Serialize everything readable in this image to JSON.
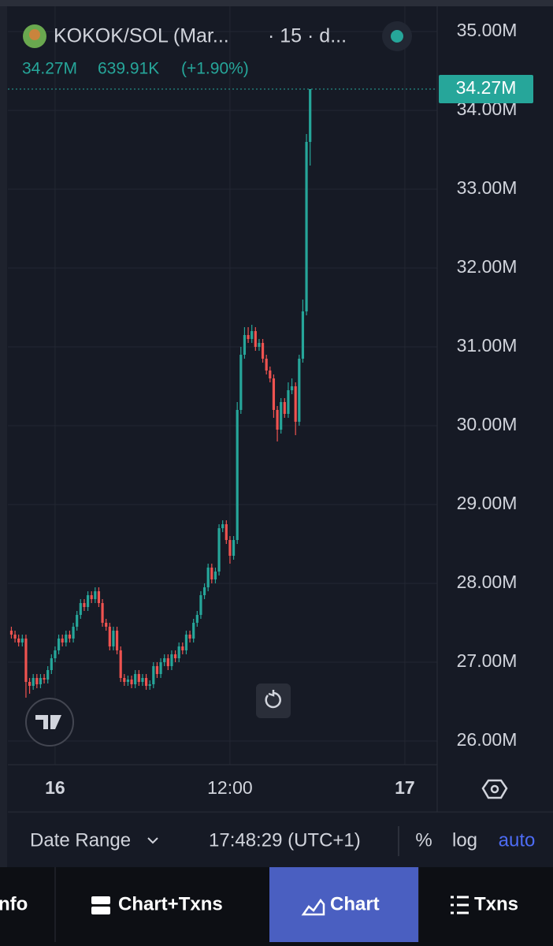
{
  "header": {
    "name": "KOKOK/SOL (Mar...",
    "interval": "· 15 · d...",
    "close": "34.27M",
    "change": "639.91K",
    "change_pct": "(+1.90%)"
  },
  "chart_data": {
    "type": "candlestick",
    "up_color": "#26a69a",
    "down_color": "#ef5350",
    "grid": true,
    "x": [
      -3,
      -2.75,
      -2.5,
      -2.25,
      -2,
      -1.75,
      -1.5,
      -1.25,
      -1,
      -0.75,
      -0.5,
      -0.25,
      0,
      0.25,
      0.5,
      0.75,
      1,
      1.25,
      1.5,
      1.75,
      2,
      2.25,
      2.5,
      2.75,
      3,
      3.25,
      3.5,
      3.75,
      4,
      4.25,
      4.5,
      4.75,
      5,
      5.25,
      5.5,
      5.75,
      6,
      6.25,
      6.5,
      6.75,
      7,
      7.25,
      7.5,
      7.75,
      8,
      8.25,
      8.5,
      8.75,
      9,
      9.25,
      9.5,
      9.75,
      10,
      10.25,
      10.5,
      10.75,
      11,
      11.25,
      11.5,
      11.75,
      12,
      12.25,
      12.5,
      12.75,
      13,
      13.25,
      13.5,
      13.75,
      14,
      14.25,
      14.5,
      14.75,
      15,
      15.25,
      15.5,
      15.75,
      16,
      16.25,
      16.5,
      16.75,
      17,
      17.25,
      17.5
    ],
    "open": [
      27.4,
      27.35,
      27.3,
      27.25,
      27.3,
      26.75,
      26.7,
      26.8,
      26.72,
      26.8,
      26.78,
      26.9,
      27.05,
      27.15,
      27.3,
      27.25,
      27.35,
      27.3,
      27.45,
      27.6,
      27.75,
      27.7,
      27.85,
      27.8,
      27.9,
      27.75,
      27.5,
      27.45,
      27.2,
      27.4,
      27.15,
      26.8,
      26.75,
      26.78,
      26.72,
      26.85,
      26.75,
      26.8,
      26.7,
      26.72,
      26.95,
      26.85,
      27.0,
      27.05,
      26.95,
      27.1,
      27.05,
      27.2,
      27.15,
      27.35,
      27.3,
      27.5,
      27.6,
      27.85,
      27.95,
      28.2,
      28.05,
      28.15,
      28.7,
      28.75,
      28.55,
      28.35,
      28.55,
      30.2,
      30.9,
      31.15,
      31.1,
      31.2,
      31.0,
      31.05,
      30.85,
      30.7,
      30.6,
      30.2,
      29.95,
      30.3,
      30.15,
      30.45,
      30.5,
      30.05,
      30.85,
      31.45,
      33.6
    ],
    "high": [
      27.45,
      27.4,
      27.35,
      27.35,
      27.35,
      26.8,
      26.85,
      26.85,
      26.85,
      26.85,
      26.95,
      27.1,
      27.2,
      27.35,
      27.35,
      27.4,
      27.4,
      27.5,
      27.65,
      27.8,
      27.8,
      27.9,
      27.9,
      27.95,
      27.95,
      27.8,
      27.55,
      27.5,
      27.45,
      27.45,
      27.2,
      26.85,
      26.83,
      26.83,
      26.9,
      26.9,
      26.85,
      26.85,
      26.77,
      27.0,
      27.0,
      27.05,
      27.1,
      27.1,
      27.15,
      27.15,
      27.25,
      27.25,
      27.4,
      27.4,
      27.55,
      27.65,
      27.9,
      28.0,
      28.25,
      28.25,
      28.2,
      28.75,
      28.8,
      28.8,
      28.6,
      28.6,
      30.3,
      31.0,
      31.25,
      31.25,
      31.28,
      31.25,
      31.1,
      31.1,
      30.9,
      30.75,
      30.65,
      30.25,
      30.35,
      30.35,
      30.55,
      30.6,
      30.55,
      30.9,
      31.6,
      33.7,
      34.27
    ],
    "low": [
      27.3,
      27.25,
      27.2,
      27.2,
      26.55,
      26.6,
      26.65,
      26.67,
      26.67,
      26.73,
      26.73,
      26.85,
      27.0,
      27.1,
      27.2,
      27.2,
      27.25,
      27.25,
      27.4,
      27.55,
      27.65,
      27.65,
      27.75,
      27.75,
      27.7,
      27.45,
      27.4,
      27.15,
      27.15,
      27.1,
      26.75,
      26.7,
      26.7,
      26.67,
      26.67,
      26.7,
      26.7,
      26.65,
      26.65,
      26.67,
      26.8,
      26.8,
      26.95,
      26.9,
      26.9,
      27.0,
      27.0,
      27.1,
      27.1,
      27.25,
      27.25,
      27.45,
      27.55,
      27.8,
      27.9,
      28.0,
      28.0,
      28.1,
      28.65,
      28.5,
      28.25,
      28.3,
      28.5,
      30.15,
      30.85,
      31.05,
      31.05,
      30.95,
      30.95,
      30.8,
      30.65,
      30.55,
      30.1,
      29.8,
      29.9,
      30.1,
      30.1,
      30.4,
      29.88,
      30.0,
      30.8,
      31.4,
      33.3
    ],
    "close": [
      27.35,
      27.3,
      27.25,
      27.3,
      26.75,
      26.7,
      26.8,
      26.72,
      26.8,
      26.78,
      26.9,
      27.05,
      27.15,
      27.3,
      27.25,
      27.35,
      27.3,
      27.45,
      27.6,
      27.75,
      27.7,
      27.85,
      27.8,
      27.9,
      27.75,
      27.5,
      27.45,
      27.2,
      27.4,
      27.15,
      26.8,
      26.75,
      26.78,
      26.72,
      26.85,
      26.75,
      26.8,
      26.7,
      26.72,
      26.95,
      26.85,
      27.0,
      27.05,
      26.95,
      27.1,
      27.05,
      27.2,
      27.15,
      27.35,
      27.3,
      27.5,
      27.6,
      27.85,
      27.95,
      28.2,
      28.05,
      28.15,
      28.7,
      28.75,
      28.55,
      28.35,
      28.55,
      30.2,
      30.9,
      31.15,
      31.1,
      31.2,
      31.0,
      31.05,
      30.85,
      30.7,
      30.6,
      30.2,
      29.95,
      30.3,
      30.15,
      30.45,
      30.5,
      30.05,
      30.85,
      31.45,
      33.6,
      34.27
    ],
    "xlim": [
      -3.24,
      26.22
    ],
    "xticks": [
      {
        "value": 0,
        "label": "16"
      },
      {
        "value": 12,
        "label": "12:00"
      },
      {
        "value": 24,
        "label": "17"
      }
    ],
    "ylim": [
      25.7,
      35.2
    ],
    "yticks": [
      {
        "value": 26,
        "label": "26.00M"
      },
      {
        "value": 27,
        "label": "27.00M"
      },
      {
        "value": 28,
        "label": "28.00M"
      },
      {
        "value": 29,
        "label": "29.00M"
      },
      {
        "value": 30,
        "label": "30.00M"
      },
      {
        "value": 31,
        "label": "31.00M"
      },
      {
        "value": 32,
        "label": "32.00M"
      },
      {
        "value": 33,
        "label": "33.00M"
      },
      {
        "value": 34,
        "label": "34.00M"
      },
      {
        "value": 35,
        "label": "35.00M"
      }
    ],
    "last_price": {
      "value": 34.27,
      "label": "34.27M"
    }
  },
  "toolbar": {
    "date_range": "Date Range",
    "time": "17:48:29 (UTC+1)",
    "percent": "%",
    "log": "log",
    "auto": "auto"
  },
  "tabs": [
    "nfo",
    "Chart+Txns",
    "Chart",
    "Txns"
  ]
}
